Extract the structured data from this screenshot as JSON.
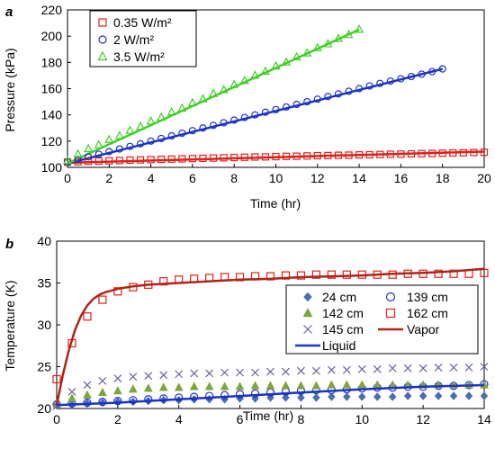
{
  "chart_data": [
    {
      "panel_label": "a",
      "type": "scatter",
      "xlabel": "Time (hr)",
      "ylabel": "Pressure (kPa)",
      "xlim": [
        0,
        20
      ],
      "ylim": [
        100,
        220
      ],
      "xticks": [
        0,
        2,
        4,
        6,
        8,
        10,
        12,
        14,
        16,
        18,
        20
      ],
      "yticks": [
        100,
        120,
        140,
        160,
        180,
        200,
        220
      ],
      "grid": false,
      "legend_position": "top-left",
      "series": [
        {
          "name": "0.35 W/m²",
          "marker": "square",
          "color": "#e0201b",
          "points_x": [
            0,
            0.5,
            1,
            1.5,
            2,
            2.5,
            3,
            3.5,
            4,
            4.5,
            5,
            5.5,
            6,
            6.5,
            7,
            7.5,
            8,
            8.5,
            9,
            9.5,
            10,
            10.5,
            11,
            11.5,
            12,
            12.5,
            13,
            13.5,
            14,
            14.5,
            15,
            15.5,
            16,
            16.5,
            17,
            17.5,
            18,
            18.5,
            19,
            19.5,
            20
          ],
          "points_y": [
            104,
            104.3,
            104.6,
            104.8,
            105,
            105.2,
            105.5,
            105.7,
            105.9,
            106.1,
            106.3,
            106.5,
            106.7,
            106.9,
            107.1,
            107.3,
            107.5,
            107.7,
            107.9,
            108,
            108.2,
            108.4,
            108.5,
            108.7,
            108.9,
            109,
            109.2,
            109.3,
            109.5,
            109.6,
            109.8,
            110,
            110.1,
            110.3,
            110.5,
            110.6,
            110.8,
            111,
            111.1,
            111.3,
            111.5
          ],
          "fit_line": [
            [
              0,
              103.5
            ],
            [
              20,
              112
            ]
          ],
          "line_color": "#e0201b"
        },
        {
          "name": "2 W/m²",
          "marker": "circle",
          "color": "#1c32c8",
          "points_x": [
            0,
            0.5,
            1,
            1.5,
            2,
            2.5,
            3,
            3.5,
            4,
            4.5,
            5,
            5.5,
            6,
            6.5,
            7,
            7.5,
            8,
            8.5,
            9,
            9.5,
            10,
            10.5,
            11,
            11.5,
            12,
            12.5,
            13,
            13.5,
            14,
            14.5,
            15,
            15.5,
            16,
            16.5,
            17,
            17.5,
            18
          ],
          "points_y": [
            104,
            106,
            108,
            110,
            112,
            114,
            116,
            118,
            120,
            122,
            124,
            126,
            128,
            130,
            132,
            134,
            136,
            138,
            140,
            142,
            144,
            146,
            148,
            150,
            152,
            154,
            156,
            158,
            160,
            162,
            164,
            165.8,
            167.5,
            169.2,
            171,
            173,
            175
          ],
          "fit_line": [
            [
              0,
              103
            ],
            [
              18,
              175
            ]
          ],
          "line_color": "#1c32c8"
        },
        {
          "name": "3.5 W/m²",
          "marker": "triangle",
          "color": "#3fcf25",
          "points_x": [
            0,
            0.5,
            1,
            1.5,
            2,
            2.5,
            3,
            3.5,
            4,
            4.5,
            5,
            5.5,
            6,
            6.5,
            7,
            7.5,
            8,
            8.5,
            9,
            9.5,
            10,
            10.5,
            11,
            11.5,
            12,
            12.5,
            13,
            13.5,
            14
          ],
          "points_y": [
            105,
            110,
            114,
            117,
            121,
            124,
            128,
            131,
            135,
            138,
            142,
            145,
            149,
            152,
            156,
            159,
            163,
            166,
            170,
            173,
            177,
            180,
            184,
            187,
            191,
            194,
            198,
            201,
            205
          ],
          "fit_line": [
            [
              0,
              103
            ],
            [
              14,
              205
            ]
          ],
          "line_color": "#3fcf25"
        }
      ]
    },
    {
      "panel_label": "b",
      "type": "scatter",
      "xlabel": "Time (hr)",
      "ylabel": "Temperature (K)",
      "xlim": [
        0,
        14
      ],
      "ylim": [
        20,
        40
      ],
      "xticks": [
        0,
        2,
        4,
        6,
        8,
        10,
        12,
        14
      ],
      "yticks": [
        20,
        25,
        30,
        35,
        40
      ],
      "grid": false,
      "legend_position": "bottom-right",
      "series": [
        {
          "name": "24 cm",
          "marker": "diamond",
          "color": "#4a6fb0",
          "points_x": [
            0,
            0.5,
            1,
            1.5,
            2,
            2.5,
            3,
            3.5,
            4,
            4.5,
            5,
            5.5,
            6,
            6.5,
            7,
            7.5,
            8,
            8.5,
            9,
            9.5,
            10,
            10.5,
            11,
            11.5,
            12,
            12.5,
            13,
            13.5,
            14
          ],
          "points_y": [
            20.4,
            20.5,
            20.6,
            20.7,
            20.8,
            20.8,
            20.9,
            21,
            21,
            21.1,
            21.1,
            21.1,
            21.2,
            21.2,
            21.3,
            21.3,
            21.3,
            21.3,
            21.4,
            21.4,
            21.4,
            21.4,
            21.4,
            21.5,
            21.5,
            21.5,
            21.5,
            21.5,
            21.5
          ]
        },
        {
          "name": "139 cm",
          "marker": "circle",
          "color": "#1c32c8",
          "points_x": [
            0,
            0.5,
            1,
            1.5,
            2,
            2.5,
            3,
            3.5,
            4,
            4.5,
            5,
            5.5,
            6,
            6.5,
            7,
            7.5,
            8,
            8.5,
            9,
            9.5,
            10,
            10.5,
            11,
            11.5,
            12,
            12.5,
            13,
            13.5,
            14
          ],
          "points_y": [
            20.5,
            20.6,
            20.7,
            20.8,
            20.9,
            21,
            21.1,
            21.2,
            21.3,
            21.4,
            21.5,
            21.6,
            21.7,
            21.8,
            21.9,
            22,
            22.1,
            22.2,
            22.2,
            22.3,
            22.4,
            22.5,
            22.5,
            22.6,
            22.6,
            22.7,
            22.7,
            22.8,
            22.9
          ]
        },
        {
          "name": "142 cm",
          "marker": "triangle",
          "color": "#7ca73c",
          "points_x": [
            0,
            0.5,
            1,
            1.5,
            2,
            2.5,
            3,
            3.5,
            4,
            4.5,
            5,
            5.5,
            6,
            6.5,
            7,
            7.5,
            8,
            8.5,
            9,
            9.5,
            10,
            10.5,
            11,
            11.5,
            12,
            12.5,
            13,
            13.5,
            14
          ],
          "points_y": [
            20.5,
            21.2,
            21.6,
            21.9,
            22.1,
            22.3,
            22.4,
            22.5,
            22.5,
            22.6,
            22.6,
            22.6,
            22.6,
            22.7,
            22.7,
            22.7,
            22.7,
            22.7,
            22.8,
            22.8,
            22.8,
            22.8,
            22.8,
            22.8,
            22.8,
            22.8,
            22.8,
            22.8,
            22.8
          ]
        },
        {
          "name": "162 cm",
          "marker": "square",
          "color": "#e0201b",
          "points_x": [
            0,
            0.5,
            1,
            1.5,
            2,
            2.5,
            3,
            3.5,
            4,
            4.5,
            5,
            5.5,
            6,
            6.5,
            7,
            7.5,
            8,
            8.5,
            9,
            9.5,
            10,
            10.5,
            11,
            11.5,
            12,
            12.5,
            13,
            13.5,
            14
          ],
          "points_y": [
            23.5,
            27.8,
            31,
            33,
            34,
            34.5,
            34.8,
            35.2,
            35.4,
            35.5,
            35.6,
            35.7,
            35.7,
            35.8,
            35.8,
            35.9,
            35.9,
            36,
            36,
            36,
            36,
            36,
            36,
            36.1,
            36.1,
            36.1,
            36.1,
            36.1,
            36.2
          ]
        },
        {
          "name": "145 cm",
          "marker": "x",
          "color": "#6e5fa0",
          "points_x": [
            0,
            0.5,
            1,
            1.5,
            2,
            2.5,
            3,
            3.5,
            4,
            4.5,
            5,
            5.5,
            6,
            6.5,
            7,
            7.5,
            8,
            8.5,
            9,
            9.5,
            10,
            10.5,
            11,
            11.5,
            12,
            12.5,
            13,
            13.5,
            14
          ],
          "points_y": [
            20.3,
            22,
            22.8,
            23.3,
            23.6,
            23.8,
            23.9,
            24,
            24.1,
            24.2,
            24.2,
            24.3,
            24.3,
            24.3,
            24.4,
            24.4,
            24.5,
            24.5,
            24.6,
            24.6,
            24.7,
            24.7,
            24.8,
            24.8,
            24.8,
            24.9,
            24.9,
            24.9,
            25
          ]
        },
        {
          "name": "Vapor",
          "marker": "line",
          "color": "#b02418",
          "line_x": [
            0,
            0.2,
            0.4,
            0.6,
            0.8,
            1,
            1.2,
            1.4,
            1.6,
            1.8,
            2,
            2.5,
            3,
            4,
            5,
            6,
            7,
            8,
            9,
            10,
            11,
            12,
            13,
            14
          ],
          "line_y": [
            20.4,
            24,
            27,
            29.4,
            31.1,
            32.3,
            33.1,
            33.6,
            33.9,
            34.1,
            34.3,
            34.6,
            34.8,
            35,
            35.2,
            35.4,
            35.5,
            35.7,
            35.8,
            35.9,
            36.1,
            36.2,
            36.4,
            36.7
          ]
        },
        {
          "name": "Liquid",
          "marker": "line",
          "color": "#1c32c8",
          "line_x": [
            0,
            2,
            4,
            6,
            8,
            10,
            12,
            14
          ],
          "line_y": [
            20.4,
            20.7,
            21.1,
            21.5,
            21.9,
            22.3,
            22.6,
            22.8
          ]
        }
      ],
      "legend_order": [
        "24 cm",
        "139 cm",
        "142 cm",
        "162 cm",
        "145 cm",
        "Vapor",
        "Liquid"
      ]
    }
  ]
}
